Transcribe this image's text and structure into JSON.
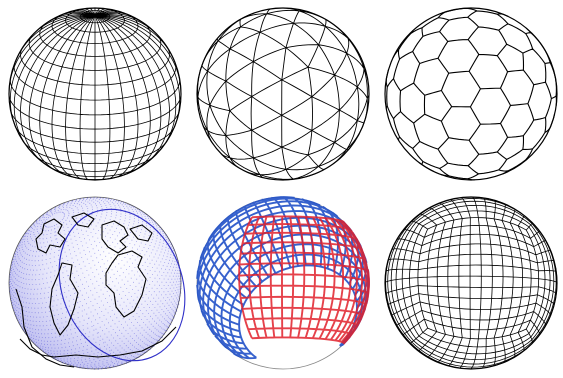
{
  "figure": {
    "panels": [
      {
        "id": "latlon",
        "kind": "latitude-longitude grid",
        "stroke": "#000000",
        "fill": "#ffffff"
      },
      {
        "id": "icosahedral-triangles",
        "kind": "icosahedral triangular grid",
        "stroke": "#000000",
        "fill": "#ffffff"
      },
      {
        "id": "hexagonal",
        "kind": "hexagonal-pentagonal grid",
        "stroke": "#000000",
        "fill": "#ffffff"
      },
      {
        "id": "earth-points",
        "kind": "rotated point grid with coastlines",
        "stroke": "#1a1acc",
        "coast": "#000000",
        "fill_center": "#ffffff",
        "fill_edge": "#b8b8ee"
      },
      {
        "id": "yin-yang",
        "kind": "overset yin-yang grid",
        "color_a": "#e0202a",
        "color_b": "#2050c8",
        "fill": "#ffffff"
      },
      {
        "id": "cubed-sphere",
        "kind": "cubed-sphere grid",
        "stroke": "#000000",
        "fill": "#ffffff"
      }
    ]
  }
}
